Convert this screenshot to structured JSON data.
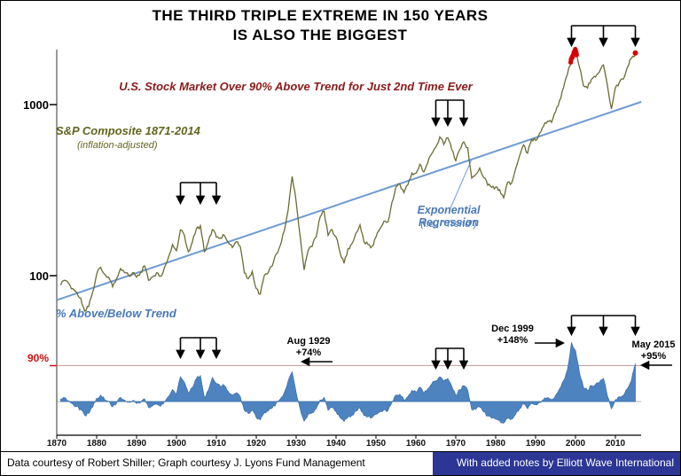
{
  "header": {
    "title_line1": "THE THIRD TRIPLE EXTREME IN 150 YEARS",
    "title_line2": "IS ALSO THE BIGGEST",
    "subtitle": "U.S. Stock Market Over 90% Above Trend for Just 2nd Time Ever"
  },
  "labels": {
    "series_label": "S&P Composite 1871-2014",
    "series_sublabel": "(inflation-adjusted)",
    "trend_label": "Exponential Regression",
    "trend_sublabel": "(i.e., “Trend”)",
    "lower_panel_label": "% Above/Below Trend",
    "y_tick_1000": "1000",
    "y_tick_100": "100",
    "pct_tick_90": "90%"
  },
  "annotations": {
    "aug1929": {
      "line1": "Aug 1929",
      "line2": "+74%"
    },
    "dec1999": {
      "line1": "Dec 1999",
      "line2": "+148%"
    },
    "may2015": {
      "line1": "May 2015",
      "line2": "+95%"
    }
  },
  "footer": {
    "left": "Data courtesy of Robert Shiller; Graph courtesy J. Lyons Fund Management",
    "right": "With added notes by Elliott Wave International"
  },
  "colors": {
    "price_line": "#6b6c35",
    "trend_line": "#6e9bd2",
    "pct_fill": "#4d84c0",
    "pct_stroke": "#3c70aa",
    "red_dot": "#d40000",
    "axis": "#333333",
    "ref90_line": "#c9a0a0",
    "zero_line": "#999999"
  },
  "chart_data": [
    {
      "type": "line",
      "name": "sp-composite-real-price",
      "title": "S&P Composite 1871-2014 (inflation-adjusted)",
      "yscale": "log",
      "ylim": [
        55,
        2400
      ],
      "y_ticks": [
        100,
        1000
      ],
      "x_start": 1871,
      "x_step": 1,
      "x_ticks": [
        1870,
        1880,
        1890,
        1900,
        1910,
        1920,
        1930,
        1940,
        1950,
        1960,
        1970,
        1980,
        1990,
        2000,
        2010
      ],
      "values": [
        88,
        94,
        90,
        84,
        80,
        74,
        62,
        66,
        80,
        102,
        112,
        102,
        98,
        86,
        96,
        110,
        104,
        100,
        104,
        98,
        104,
        114,
        94,
        98,
        104,
        99,
        112,
        128,
        152,
        140,
        185,
        172,
        138,
        158,
        188,
        196,
        138,
        158,
        186,
        168,
        166,
        172,
        156,
        146,
        158,
        148,
        104,
        96,
        106,
        84,
        78,
        100,
        104,
        114,
        134,
        150,
        182,
        242,
        380,
        270,
        170,
        108,
        140,
        148,
        168,
        220,
        238,
        172,
        186,
        168,
        136,
        118,
        144,
        154,
        178,
        198,
        158,
        152,
        148,
        168,
        188,
        208,
        206,
        268,
        330,
        342,
        306,
        340,
        398,
        396,
        448,
        404,
        458,
        518,
        565,
        648,
        585,
        640,
        545,
        470,
        545,
        605,
        560,
        372,
        390,
        425,
        375,
        338,
        328,
        330,
        318,
        285,
        352,
        348,
        422,
        502,
        582,
        520,
        625,
        618,
        680,
        748,
        800,
        788,
        905,
        1055,
        1255,
        1510,
        1820,
        2060,
        1650,
        1290,
        1250,
        1405,
        1450,
        1555,
        1705,
        1295,
        945,
        1255,
        1350,
        1410,
        1655,
        1860,
        1955
      ],
      "trend": {
        "type": "exponential_regression",
        "x": [
          1870,
          2015
        ],
        "values": [
          72,
          1010
        ]
      },
      "red_highlight": {
        "cluster_year_range": [
          1998.8,
          2000.4
        ],
        "single_year": 2015
      },
      "triple_extremes_years": [
        [
          1901,
          1906,
          1910
        ],
        [
          1965,
          1968,
          1972
        ],
        [
          1999,
          2007,
          2015
        ]
      ]
    },
    {
      "type": "area",
      "name": "pct-above-below-trend",
      "title": "% Above/Below Trend",
      "reference_line_pct": 90,
      "x_start": 1871,
      "x_step": 1,
      "values": [
        6,
        10,
        2,
        -6,
        -12,
        -20,
        -34,
        -30,
        -14,
        8,
        16,
        5,
        0,
        -13,
        -4,
        10,
        4,
        -1,
        2,
        -5,
        -2,
        7,
        -14,
        -11,
        -6,
        -12,
        0,
        12,
        30,
        18,
        62,
        48,
        20,
        35,
        58,
        65,
        10,
        28,
        60,
        45,
        38,
        40,
        25,
        15,
        22,
        12,
        -22,
        -30,
        -20,
        -40,
        -46,
        -28,
        -24,
        -16,
        -4,
        6,
        22,
        52,
        74,
        22,
        -18,
        -49,
        -32,
        -28,
        -18,
        4,
        10,
        -22,
        -15,
        -25,
        -40,
        -50,
        -38,
        -34,
        -24,
        -16,
        -35,
        -38,
        -40,
        -32,
        -26,
        -20,
        -23,
        -2,
        16,
        18,
        4,
        12,
        28,
        24,
        36,
        20,
        32,
        45,
        52,
        62,
        50,
        58,
        38,
        15,
        30,
        40,
        28,
        -20,
        -20,
        -14,
        -26,
        -36,
        -42,
        -44,
        -48,
        -54,
        -42,
        -44,
        -32,
        -18,
        -6,
        -18,
        -4,
        -8,
        -2,
        5,
        10,
        5,
        15,
        32,
        52,
        80,
        148,
        128,
        72,
        35,
        28,
        40,
        42,
        48,
        58,
        14,
        -18,
        5,
        12,
        15,
        32,
        52,
        95
      ],
      "callouts": [
        {
          "label": "Aug 1929",
          "value_pct": 74,
          "year": 1929
        },
        {
          "label": "Dec 1999",
          "value_pct": 148,
          "year": 1999
        },
        {
          "label": "May 2015",
          "value_pct": 95,
          "year": 2015
        }
      ],
      "triple_extremes_years": [
        [
          1901,
          1906,
          1910
        ],
        [
          1965,
          1968,
          1972
        ],
        [
          1999,
          2007,
          2015
        ]
      ]
    }
  ]
}
